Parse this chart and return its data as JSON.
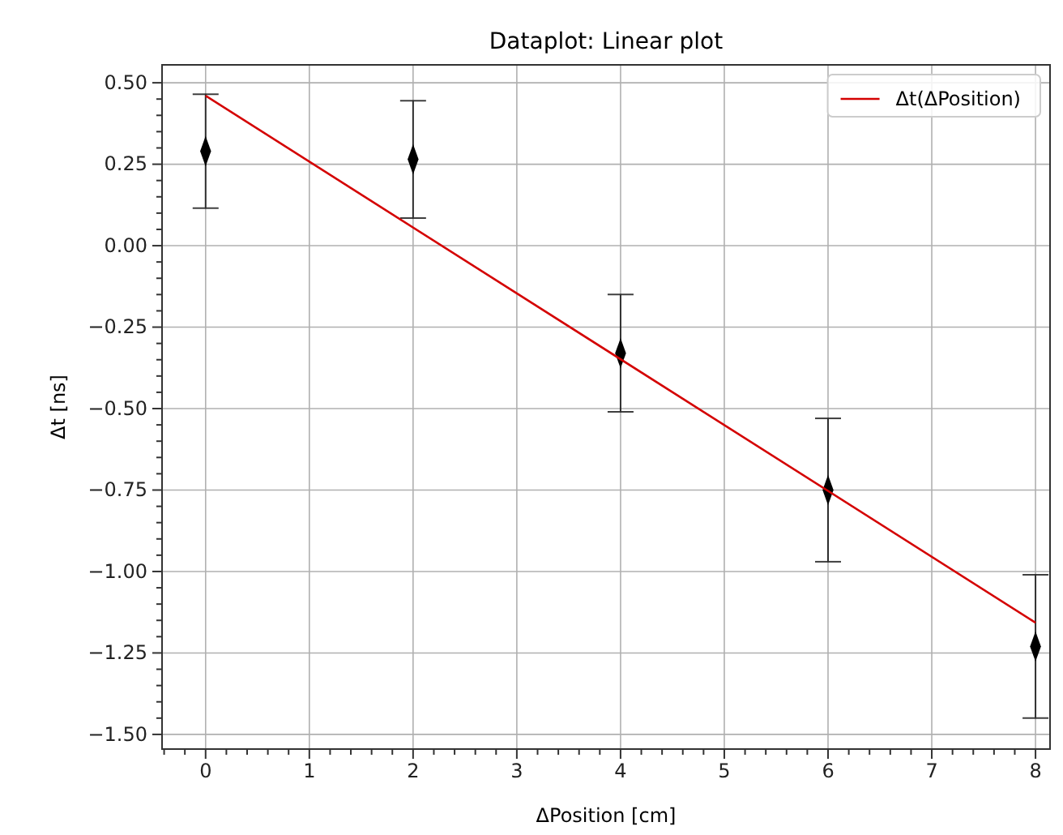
{
  "chart_data": {
    "type": "scatter",
    "title": "Dataplot: Linear plot",
    "xlabel": "ΔPosition [cm]",
    "ylabel": "Δt [ns]",
    "xlim": [
      -0.42,
      8.14
    ],
    "ylim": [
      -1.545,
      0.555
    ],
    "xticks": [
      {
        "value": -0.4,
        "label": null
      },
      {
        "value": -0.2,
        "label": null
      },
      0,
      {
        "value": 0.2,
        "label": null
      },
      {
        "value": 0.4,
        "label": null
      },
      {
        "value": 0.6,
        "label": null
      },
      {
        "value": 0.8,
        "label": null
      },
      1,
      {
        "value": 1.2,
        "label": null
      },
      {
        "value": 1.4,
        "label": null
      },
      {
        "value": 1.6,
        "label": null
      },
      {
        "value": 1.8,
        "label": null
      },
      2,
      {
        "value": 2.2,
        "label": null
      },
      {
        "value": 2.4,
        "label": null
      },
      {
        "value": 2.6,
        "label": null
      },
      {
        "value": 2.8,
        "label": null
      },
      3,
      {
        "value": 3.2,
        "label": null
      },
      {
        "value": 3.4,
        "label": null
      },
      {
        "value": 3.6,
        "label": null
      },
      {
        "value": 3.8,
        "label": null
      },
      4,
      {
        "value": 4.2,
        "label": null
      },
      {
        "value": 4.4,
        "label": null
      },
      {
        "value": 4.6,
        "label": null
      },
      {
        "value": 4.8,
        "label": null
      },
      5,
      {
        "value": 5.2,
        "label": null
      },
      {
        "value": 5.4,
        "label": null
      },
      {
        "value": 5.6,
        "label": null
      },
      {
        "value": 5.8,
        "label": null
      },
      6,
      {
        "value": 6.2,
        "label": null
      },
      {
        "value": 6.4,
        "label": null
      },
      {
        "value": 6.6,
        "label": null
      },
      {
        "value": 6.8,
        "label": null
      },
      7,
      {
        "value": 7.2,
        "label": null
      },
      {
        "value": 7.4,
        "label": null
      },
      {
        "value": 7.6,
        "label": null
      },
      {
        "value": 7.8,
        "label": null
      },
      8
    ],
    "yticks": [
      {
        "value": -1.5,
        "label": "−1.50"
      },
      {
        "value": -1.45,
        "label": null
      },
      {
        "value": -1.4,
        "label": null
      },
      {
        "value": -1.35,
        "label": null
      },
      {
        "value": -1.3,
        "label": null
      },
      {
        "value": -1.25,
        "label": "−1.25"
      },
      {
        "value": -1.2,
        "label": null
      },
      {
        "value": -1.15,
        "label": null
      },
      {
        "value": -1.1,
        "label": null
      },
      {
        "value": -1.05,
        "label": null
      },
      {
        "value": -1.0,
        "label": "−1.00"
      },
      {
        "value": -0.95,
        "label": null
      },
      {
        "value": -0.9,
        "label": null
      },
      {
        "value": -0.85,
        "label": null
      },
      {
        "value": -0.8,
        "label": null
      },
      {
        "value": -0.75,
        "label": "−0.75"
      },
      {
        "value": -0.7,
        "label": null
      },
      {
        "value": -0.65,
        "label": null
      },
      {
        "value": -0.6,
        "label": null
      },
      {
        "value": -0.55,
        "label": null
      },
      {
        "value": -0.5,
        "label": "−0.50"
      },
      {
        "value": -0.45,
        "label": null
      },
      {
        "value": -0.4,
        "label": null
      },
      {
        "value": -0.35,
        "label": null
      },
      {
        "value": -0.3,
        "label": null
      },
      {
        "value": -0.25,
        "label": "−0.25"
      },
      {
        "value": -0.2,
        "label": null
      },
      {
        "value": -0.15,
        "label": null
      },
      {
        "value": -0.1,
        "label": null
      },
      {
        "value": -0.05,
        "label": null
      },
      {
        "value": 0,
        "label": "0.00"
      },
      {
        "value": 0.05,
        "label": null
      },
      {
        "value": 0.1,
        "label": null
      },
      {
        "value": 0.15,
        "label": null
      },
      {
        "value": 0.2,
        "label": null
      },
      {
        "value": 0.25,
        "label": "0.25"
      },
      {
        "value": 0.3,
        "label": null
      },
      {
        "value": 0.35,
        "label": null
      },
      {
        "value": 0.4,
        "label": null
      },
      {
        "value": 0.45,
        "label": null
      },
      {
        "value": 0.5,
        "label": "0.50"
      }
    ],
    "grid": true,
    "legend": "top right",
    "series": [
      {
        "marker": "diamond",
        "color": "#000000",
        "x": [
          0,
          2,
          4,
          6,
          8
        ],
        "values": [
          0.29,
          0.265,
          -0.33,
          -0.75,
          -1.23
        ],
        "errors": [
          0.175,
          0.18,
          0.18,
          0.22,
          0.22
        ]
      },
      {
        "type": "line",
        "name": "Δt(ΔPosition)",
        "color": "#d40000",
        "x": [
          0,
          8
        ],
        "values": [
          0.46,
          -1.157
        ]
      }
    ]
  }
}
